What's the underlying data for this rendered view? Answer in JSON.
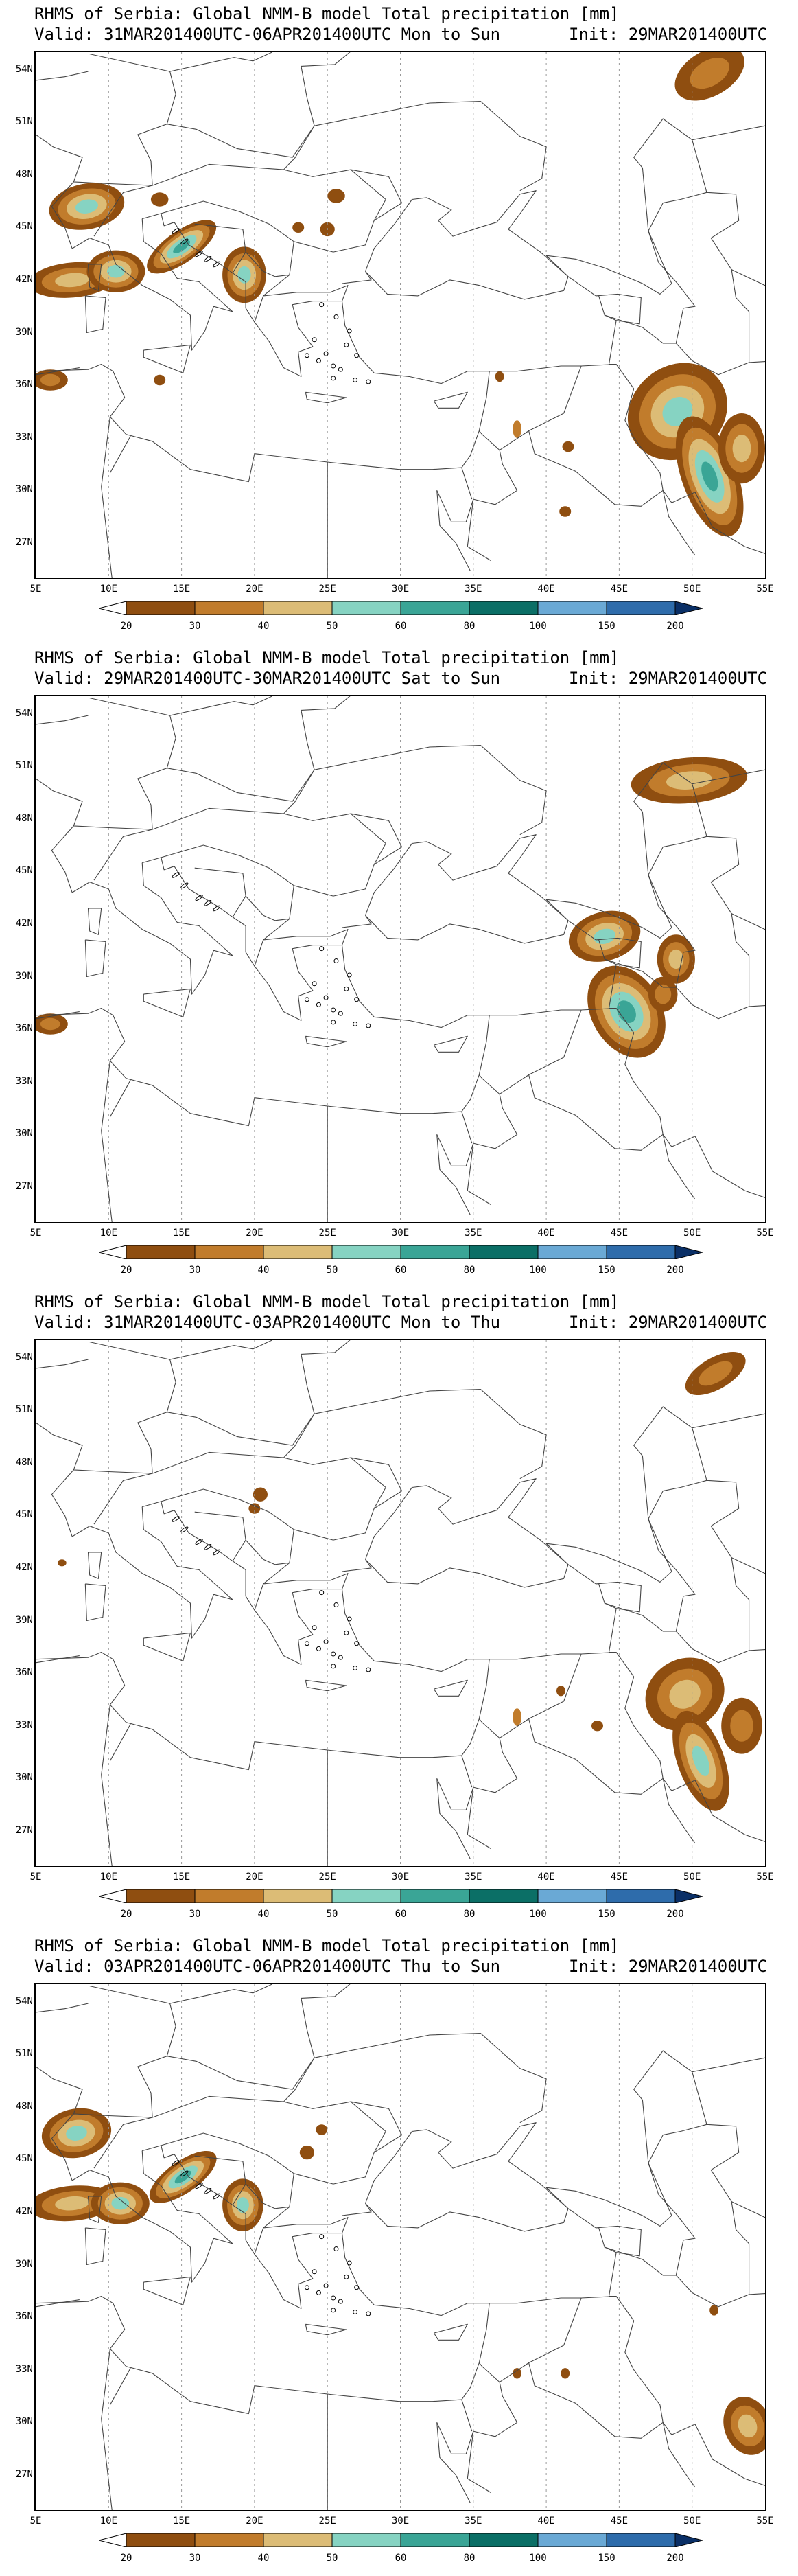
{
  "colors": {
    "shade_20_30": "#8f4e10",
    "shade_30_40": "#c17c2c",
    "shade_40_50": "#dcbc76",
    "shade_50_60": "#86d3c2",
    "shade_60_80": "#3aa596",
    "shade_80_100": "#0b6f66",
    "shade_100_150": "#6aa9d5",
    "shade_150_200": "#2e6cab",
    "shade_over_200": "#0a2f66",
    "border": "#444444",
    "grid": "#999999"
  },
  "axes": {
    "lat_labels": [
      "54N",
      "51N",
      "48N",
      "45N",
      "42N",
      "39N",
      "36N",
      "33N",
      "30N",
      "27N"
    ],
    "lon_labels": [
      "5E",
      "10E",
      "15E",
      "20E",
      "25E",
      "30E",
      "35E",
      "40E",
      "45E",
      "50E",
      "55E"
    ]
  },
  "colorbar": {
    "labels": [
      "20",
      "30",
      "40",
      "50",
      "60",
      "80",
      "100",
      "150",
      "200"
    ]
  },
  "panels": [
    {
      "title": "RHMS of Serbia: Global NMM-B model Total precipitation [mm]",
      "valid": "Valid: 31MAR201400UTC-06APR201400UTC Mon to Sun",
      "init": "Init: 29MAR201400UTC"
    },
    {
      "title": "RHMS of Serbia: Global NMM-B model Total precipitation [mm]",
      "valid": "Valid: 29MAR201400UTC-30MAR201400UTC Sat to Sun",
      "init": "Init: 29MAR201400UTC"
    },
    {
      "title": "RHMS of Serbia: Global NMM-B model Total precipitation [mm]",
      "valid": "Valid: 31MAR201400UTC-03APR201400UTC Mon to Thu",
      "init": "Init: 29MAR201400UTC"
    },
    {
      "title": "RHMS of Serbia: Global NMM-B model Total precipitation [mm]",
      "valid": "Valid: 03APR201400UTC-06APR201400UTC Thu to Sun",
      "init": "Init: 29MAR201400UTC"
    }
  ]
}
